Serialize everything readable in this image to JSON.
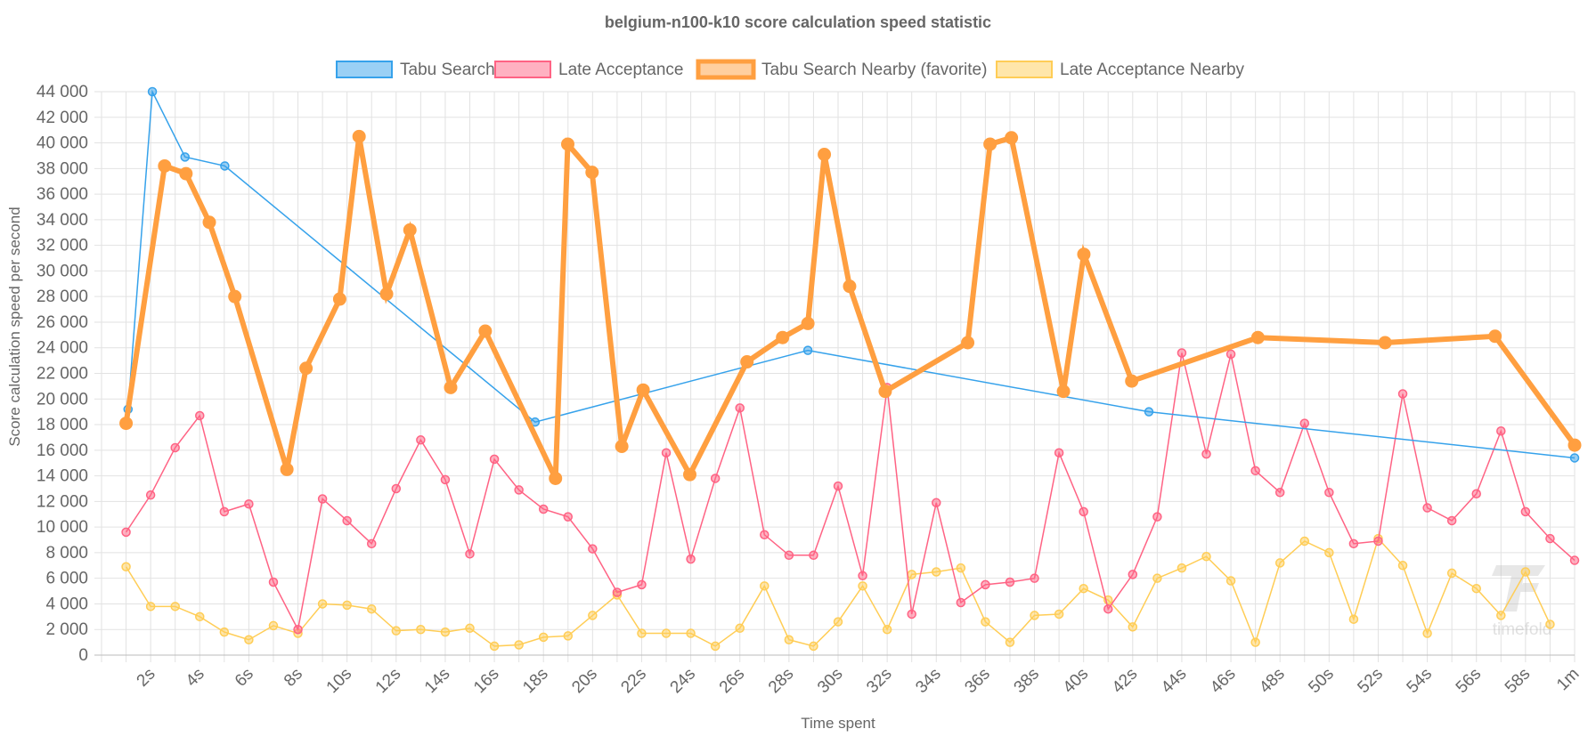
{
  "chart_data": {
    "type": "line",
    "title": "belgium-n100-k10 score calculation speed statistic",
    "xlabel": "Time spent",
    "ylabel": "Score calculation speed per second",
    "xlim": [
      0,
      60
    ],
    "ylim": [
      0,
      44000
    ],
    "grid": true,
    "legend": "top",
    "x_tick_labels": [
      "2s",
      "4s",
      "6s",
      "8s",
      "10s",
      "12s",
      "14s",
      "16s",
      "18s",
      "20s",
      "22s",
      "24s",
      "26s",
      "28s",
      "30s",
      "32s",
      "34s",
      "36s",
      "38s",
      "40s",
      "42s",
      "44s",
      "46s",
      "48s",
      "50s",
      "52s",
      "54s",
      "56s",
      "58s",
      "1m"
    ],
    "y_tick_labels": [
      "0",
      "2 000",
      "4 000",
      "6 000",
      "8 000",
      "10 000",
      "12 000",
      "14 000",
      "16 000",
      "18 000",
      "20 000",
      "22 000",
      "24 000",
      "26 000",
      "28 000",
      "30 000",
      "32 000",
      "34 000",
      "36 000",
      "38 000",
      "40 000",
      "42 000",
      "44 000"
    ],
    "series": [
      {
        "name": "Tabu Search",
        "color": "#36a2eb",
        "x": [
          1.08,
          2.07,
          3.4,
          5.02,
          17.66,
          28.77,
          42.66,
          60
        ],
        "y": [
          19200,
          44000,
          38900,
          38200,
          18200,
          23800,
          19000,
          15400
        ]
      },
      {
        "name": "Late Acceptance",
        "color": "#ff6384",
        "x": [
          1,
          2,
          3,
          4,
          5,
          6,
          7,
          8,
          9,
          10,
          11,
          12,
          13,
          14,
          15,
          16,
          17,
          18,
          19,
          20,
          21,
          22,
          23,
          24,
          25,
          26,
          27,
          28,
          29,
          30,
          31,
          32,
          33,
          34,
          35,
          36,
          37,
          38,
          39,
          40,
          41,
          42,
          43,
          44,
          45,
          46,
          47,
          48,
          49,
          50,
          51,
          52,
          53,
          54,
          55,
          56,
          57,
          58,
          59,
          60
        ],
        "y": [
          9600,
          12500,
          16200,
          18700,
          11200,
          11800,
          5700,
          2000,
          12200,
          10500,
          8700,
          13000,
          16800,
          13700,
          7900,
          15300,
          12900,
          11400,
          10800,
          8300,
          4900,
          5500,
          15800,
          7500,
          13800,
          19300,
          9400,
          7800,
          7800,
          13200,
          6200,
          20900,
          3200,
          11900,
          4100,
          5500,
          5700,
          6000,
          15800,
          11200,
          3600,
          6300,
          10800,
          23600,
          15700,
          23500,
          14400,
          12700,
          18100,
          12700,
          8700,
          8900,
          20400,
          11500,
          10500,
          12600,
          17500,
          11200,
          9100,
          7400
        ]
      },
      {
        "name": "Tabu Search Nearby (favorite)",
        "color": "#ff9f40",
        "favorite": true,
        "x": [
          1,
          2.57,
          3.44,
          4.39,
          5.43,
          7.55,
          8.33,
          9.7,
          10.49,
          11.61,
          12.56,
          14.22,
          15.63,
          18.49,
          18.99,
          19.98,
          21.19,
          22.06,
          23.96,
          26.29,
          27.74,
          28.77,
          29.44,
          30.47,
          31.92,
          35.28,
          36.19,
          37.06,
          39.18,
          40.01,
          41.96,
          47.1,
          52.28,
          56.76,
          60
        ],
        "y": [
          18100,
          38200,
          37600,
          33800,
          28000,
          14500,
          22400,
          27800,
          40500,
          28200,
          33200,
          20900,
          25300,
          13800,
          39900,
          37700,
          16300,
          20700,
          14100,
          22900,
          24800,
          25900,
          39100,
          28800,
          20600,
          24400,
          39900,
          40400,
          20600,
          31300,
          21400,
          24800,
          24400,
          24900,
          16400
        ]
      },
      {
        "name": "Late Acceptance Nearby",
        "color": "#ffcd56",
        "x": [
          1,
          2,
          3,
          4,
          5,
          6,
          7,
          8,
          9,
          10,
          11,
          12,
          13,
          14,
          15,
          16,
          17,
          18,
          19,
          20,
          21,
          22,
          23,
          24,
          25,
          26,
          27,
          28,
          29,
          30,
          31,
          32,
          33,
          34,
          35,
          36,
          37,
          38,
          39,
          40,
          41,
          42,
          43,
          44,
          45,
          46,
          47,
          48,
          49,
          50,
          51,
          52,
          53,
          54,
          55,
          56,
          57,
          58,
          59
        ],
        "y": [
          6900,
          3800,
          3800,
          3000,
          1800,
          1200,
          2300,
          1700,
          4000,
          3900,
          3600,
          1900,
          2000,
          1800,
          2100,
          700,
          800,
          1400,
          1500,
          3100,
          4700,
          1700,
          1700,
          1700,
          700,
          2100,
          5400,
          1200,
          700,
          2600,
          5400,
          2000,
          6300,
          6500,
          6800,
          2600,
          1000,
          3100,
          3200,
          5200,
          4300,
          2200,
          6000,
          6800,
          7700,
          5800,
          1000,
          7200,
          8900,
          8000,
          2800,
          9100,
          7000,
          1700,
          6400,
          5200,
          3100,
          6500,
          2400
        ]
      }
    ]
  },
  "watermark": "timefold"
}
